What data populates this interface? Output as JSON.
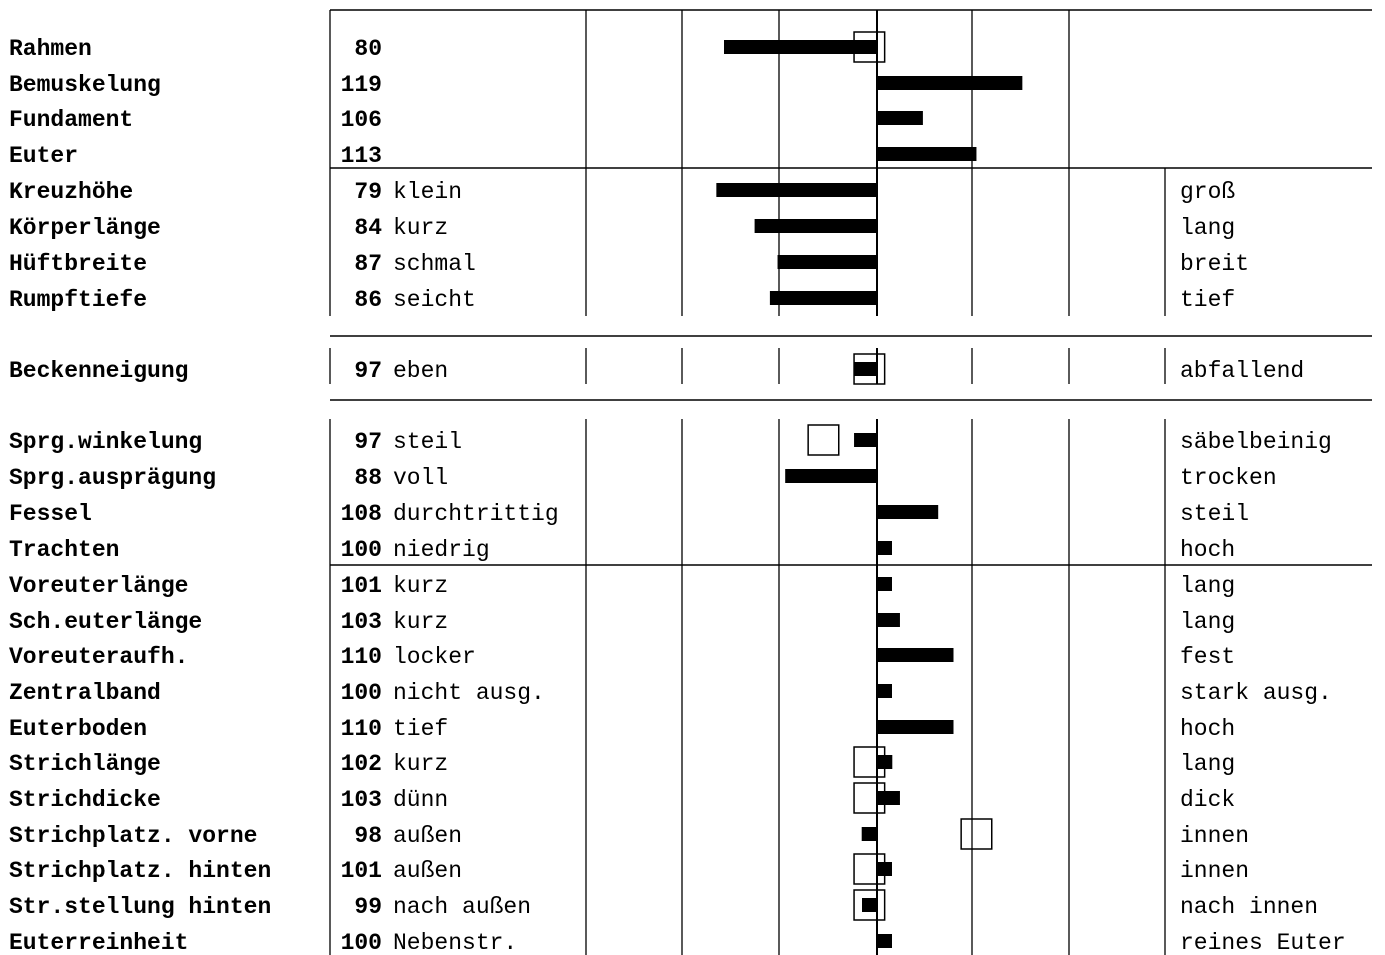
{
  "chart_data": {
    "type": "bar",
    "baseline": 100,
    "xlim": [
      64,
      136
    ],
    "grid": true,
    "rows": [
      {
        "trait": "Rahmen",
        "value": 80,
        "low": "",
        "high": "",
        "box": [
          97,
          101
        ]
      },
      {
        "trait": "Bemuskelung",
        "value": 119,
        "low": "",
        "high": ""
      },
      {
        "trait": "Fundament",
        "value": 106,
        "low": "",
        "high": ""
      },
      {
        "trait": "Euter",
        "value": 113,
        "low": "",
        "high": ""
      },
      {
        "trait": "Kreuzhöhe",
        "value": 79,
        "low": "klein",
        "high": "groß"
      },
      {
        "trait": "Körperlänge",
        "value": 84,
        "low": "kurz",
        "high": "lang"
      },
      {
        "trait": "Hüftbreite",
        "value": 87,
        "low": "schmal",
        "high": "breit"
      },
      {
        "trait": "Rumpftiefe",
        "value": 86,
        "low": "seicht",
        "high": "tief"
      },
      {
        "trait": "Beckenneigung",
        "value": 97,
        "low": "eben",
        "high": "abfallend",
        "box": [
          97,
          101
        ]
      },
      {
        "trait": "Sprg.winkelung",
        "value": 97,
        "low": "steil",
        "high": "säbelbeinig",
        "box": [
          91,
          95
        ]
      },
      {
        "trait": "Sprg.ausprägung",
        "value": 88,
        "low": "voll",
        "high": "trocken"
      },
      {
        "trait": "Fessel",
        "value": 108,
        "low": "durchtrittig",
        "high": "steil"
      },
      {
        "trait": "Trachten",
        "value": 100,
        "low": "niedrig",
        "high": "hoch"
      },
      {
        "trait": "Voreuterlänge",
        "value": 101,
        "low": "kurz",
        "high": "lang"
      },
      {
        "trait": "Sch.euterlänge",
        "value": 103,
        "low": "kurz",
        "high": "lang"
      },
      {
        "trait": "Voreuteraufh.",
        "value": 110,
        "low": "locker",
        "high": "fest"
      },
      {
        "trait": "Zentralband",
        "value": 100,
        "low": "nicht ausg.",
        "high": "stark ausg."
      },
      {
        "trait": "Euterboden",
        "value": 110,
        "low": "tief",
        "high": "hoch"
      },
      {
        "trait": "Strichlänge",
        "value": 102,
        "low": "kurz",
        "high": "lang",
        "box": [
          97,
          101
        ]
      },
      {
        "trait": "Strichdicke",
        "value": 103,
        "low": "dünn",
        "high": "dick",
        "box": [
          97,
          101
        ]
      },
      {
        "trait": "Strichplatz. vorne",
        "value": 98,
        "low": "außen",
        "high": "innen",
        "box": [
          111,
          115
        ]
      },
      {
        "trait": "Strichplatz. hinten",
        "value": 101,
        "low": "außen",
        "high": "innen",
        "box": [
          97,
          101
        ]
      },
      {
        "trait": "Str.stellung hinten",
        "value": 99,
        "low": "nach außen",
        "high": "nach innen",
        "box": [
          97,
          101
        ]
      },
      {
        "trait": "Euterreinheit",
        "value": 100,
        "low": "Nebenstr.",
        "high": "reines Euter"
      }
    ]
  }
}
